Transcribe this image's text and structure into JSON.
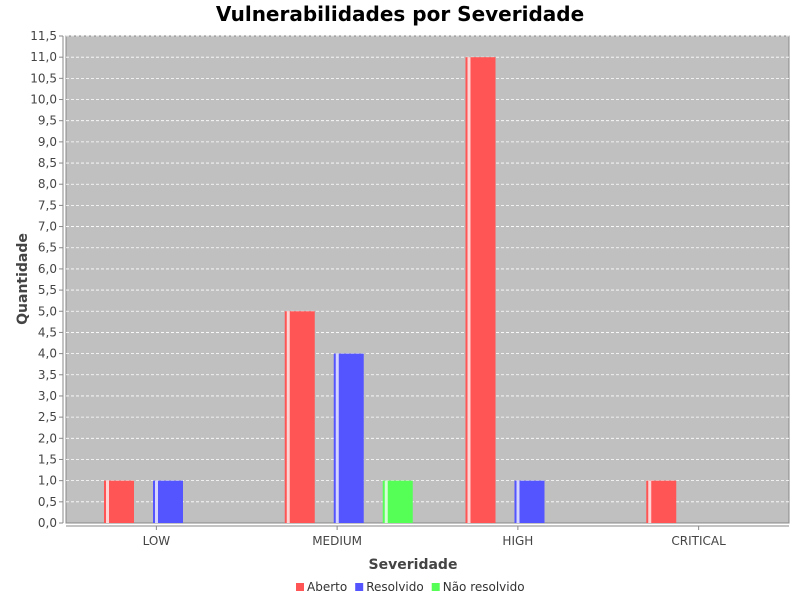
{
  "chart_data": {
    "type": "bar",
    "title": "Vulnerabilidades por Severidade",
    "xlabel": "Severidade",
    "ylabel": "Quantidade",
    "categories": [
      "LOW",
      "MEDIUM",
      "HIGH",
      "CRITICAL"
    ],
    "series": [
      {
        "name": "Aberto",
        "color": "#ff5555",
        "values": [
          1,
          5,
          11,
          1
        ]
      },
      {
        "name": "Resolvido",
        "color": "#5555ff",
        "values": [
          1,
          4,
          1,
          0
        ]
      },
      {
        "name": "Não resolvido",
        "color": "#55ff55",
        "values": [
          0,
          1,
          0,
          0
        ]
      }
    ],
    "ylim": [
      0,
      11.5
    ],
    "y_tick_step": 0.5,
    "y_decimal_separator": ",",
    "grid": true,
    "plot_background": "#c0c0c0",
    "legend_position": "bottom"
  }
}
